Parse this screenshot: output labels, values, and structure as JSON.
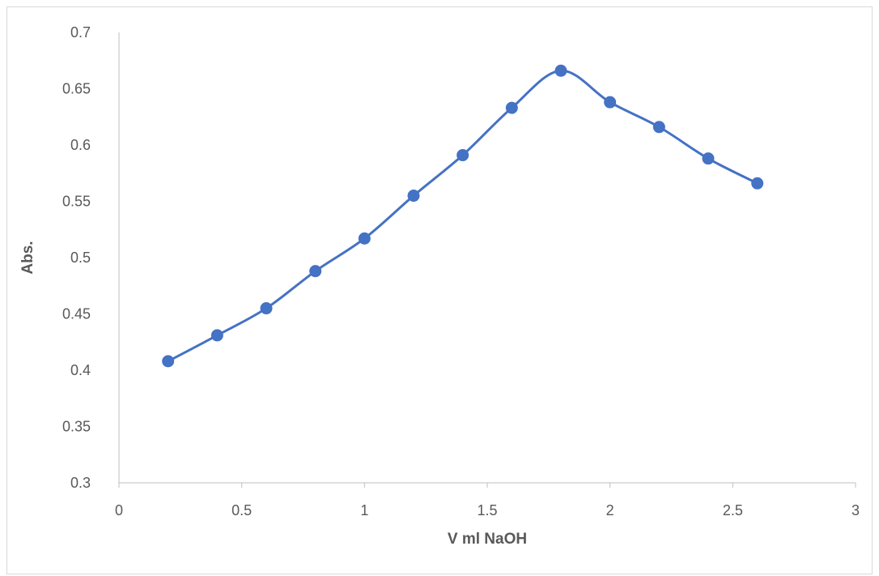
{
  "chart_data": {
    "type": "scatter",
    "title": "",
    "xlabel": "V ml NaOH",
    "ylabel": "Abs.",
    "xlim": [
      0,
      3
    ],
    "ylim": [
      0.3,
      0.7
    ],
    "x_ticks": [
      "0",
      "0.5",
      "1",
      "1.5",
      "2",
      "2.5",
      "3"
    ],
    "y_ticks": [
      "0.3",
      "0.35",
      "0.4",
      "0.45",
      "0.5",
      "0.55",
      "0.6",
      "0.65",
      "0.7"
    ],
    "grid": false,
    "line_style": "smooth",
    "series": [
      {
        "color": "#4472C4",
        "x": [
          0.2,
          0.4,
          0.6,
          0.8,
          1.0,
          1.2,
          1.4,
          1.6,
          1.8,
          2.0,
          2.2,
          2.4,
          2.6
        ],
        "y": [
          0.408,
          0.431,
          0.455,
          0.488,
          0.517,
          0.555,
          0.591,
          0.633,
          0.666,
          0.638,
          0.616,
          0.588,
          0.566
        ]
      }
    ]
  }
}
